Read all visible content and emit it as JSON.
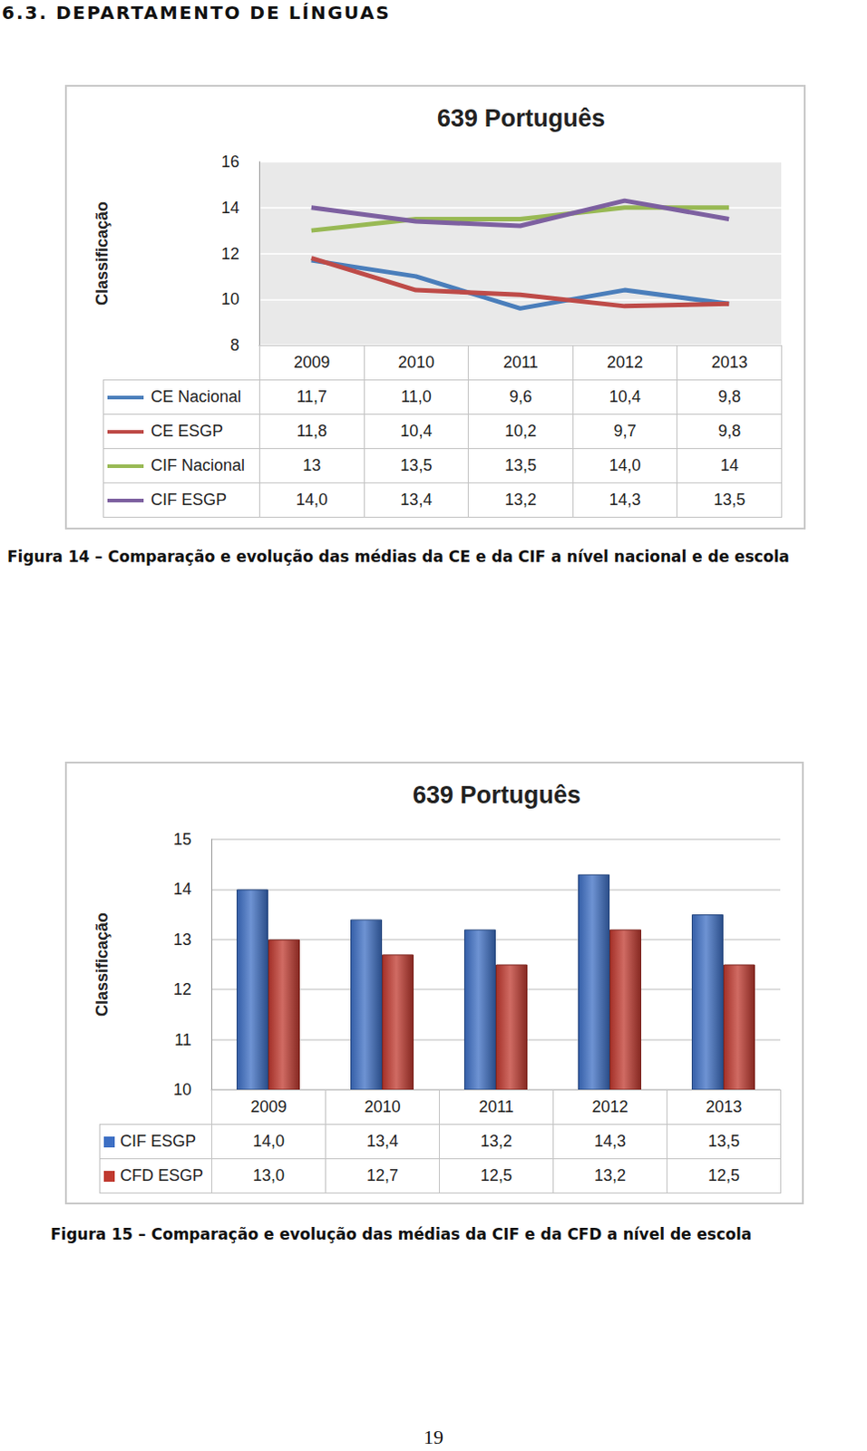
{
  "heading": "6.3. DEPARTAMENTO DE LÍNGUAS",
  "chart_data": [
    {
      "type": "line",
      "title": "639 Português",
      "ylabel": "Classificação",
      "categories": [
        "2009",
        "2010",
        "2011",
        "2012",
        "2013"
      ],
      "series": [
        {
          "name": "CE Nacional",
          "color": "#4a7ebb",
          "values": [
            11.7,
            11.0,
            9.6,
            10.4,
            9.8
          ],
          "value_labels": [
            "11,7",
            "11,0",
            "9,6",
            "10,4",
            "9,8"
          ]
        },
        {
          "name": "CE ESGP",
          "color": "#be4b48",
          "values": [
            11.8,
            10.4,
            10.2,
            9.7,
            9.8
          ],
          "value_labels": [
            "11,8",
            "10,4",
            "10,2",
            "9,7",
            "9,8"
          ]
        },
        {
          "name": "CIF Nacional",
          "color": "#98b954",
          "values": [
            13,
            13.5,
            13.5,
            14.0,
            14
          ],
          "value_labels": [
            "13",
            "13,5",
            "13,5",
            "14,0",
            "14"
          ]
        },
        {
          "name": "CIF ESGP",
          "color": "#7d60a0",
          "values": [
            14.0,
            13.4,
            13.2,
            14.3,
            13.5
          ],
          "value_labels": [
            "14,0",
            "13,4",
            "13,2",
            "14,3",
            "13,5"
          ]
        }
      ],
      "ylim": [
        8,
        16
      ],
      "yticks": [
        8,
        10,
        12,
        14,
        16
      ],
      "grid": true,
      "tick_labels": "y"
    },
    {
      "type": "bar",
      "title": "639 Português",
      "ylabel": "Classificação",
      "categories": [
        "2009",
        "2010",
        "2011",
        "2012",
        "2013"
      ],
      "series": [
        {
          "name": "CIF ESGP",
          "color": "#3d6fc4",
          "values": [
            14.0,
            13.4,
            13.2,
            14.3,
            13.5
          ],
          "value_labels": [
            "14,0",
            "13,4",
            "13,2",
            "14,3",
            "13,5"
          ]
        },
        {
          "name": "CFD ESGP",
          "color": "#c0392f",
          "values": [
            13.0,
            12.7,
            12.5,
            13.2,
            12.5
          ],
          "value_labels": [
            "13,0",
            "12,7",
            "12,5",
            "13,2",
            "12,5"
          ]
        }
      ],
      "ylim": [
        10,
        15
      ],
      "yticks": [
        10,
        11,
        12,
        13,
        14,
        15
      ],
      "grid": true,
      "tick_labels": "y"
    }
  ],
  "captions": [
    "Figura 14 – Comparação e evolução das médias da CE e da CIF a nível nacional e de escola",
    "Figura 15 – Comparação e evolução das médias da CIF e da CFD a nível de escola"
  ],
  "page_number": "19"
}
